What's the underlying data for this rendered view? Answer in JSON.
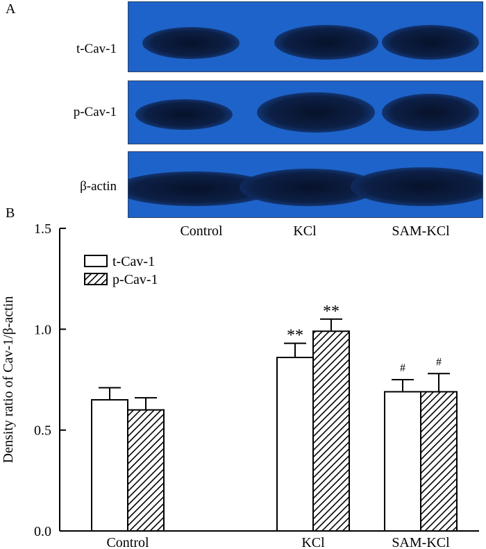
{
  "panel_a": {
    "label": "A",
    "rows": [
      {
        "label": "t-Cav-1"
      },
      {
        "label": "p-Cav-1"
      },
      {
        "label": "β-actin"
      }
    ],
    "lanes": [
      "Control",
      "KCl",
      "SAM-KCl"
    ],
    "colors": {
      "membrane": "#1e63c9",
      "band": "#0c1f45"
    }
  },
  "panel_b": {
    "label": "B"
  },
  "chart_data": {
    "type": "bar",
    "categories": [
      "Control",
      "KCl",
      "SAM-KCl"
    ],
    "ylabel": "Density ratio of Cav-1/β-actin",
    "xlabel": "",
    "ylim": [
      0.0,
      1.5
    ],
    "yticks": [
      "0.0",
      "0.5",
      "1.0",
      "1.5"
    ],
    "legend_position": "top-left",
    "series": [
      {
        "name": "t-Cav-1",
        "fill": "open",
        "values": [
          0.65,
          0.86,
          0.69
        ],
        "errors": [
          0.06,
          0.07,
          0.06
        ],
        "marks": [
          "",
          "**",
          "#"
        ]
      },
      {
        "name": "p-Cav-1",
        "fill": "hatched",
        "values": [
          0.6,
          0.99,
          0.69
        ],
        "errors": [
          0.06,
          0.06,
          0.09
        ],
        "marks": [
          "",
          "**",
          "#"
        ]
      }
    ]
  }
}
